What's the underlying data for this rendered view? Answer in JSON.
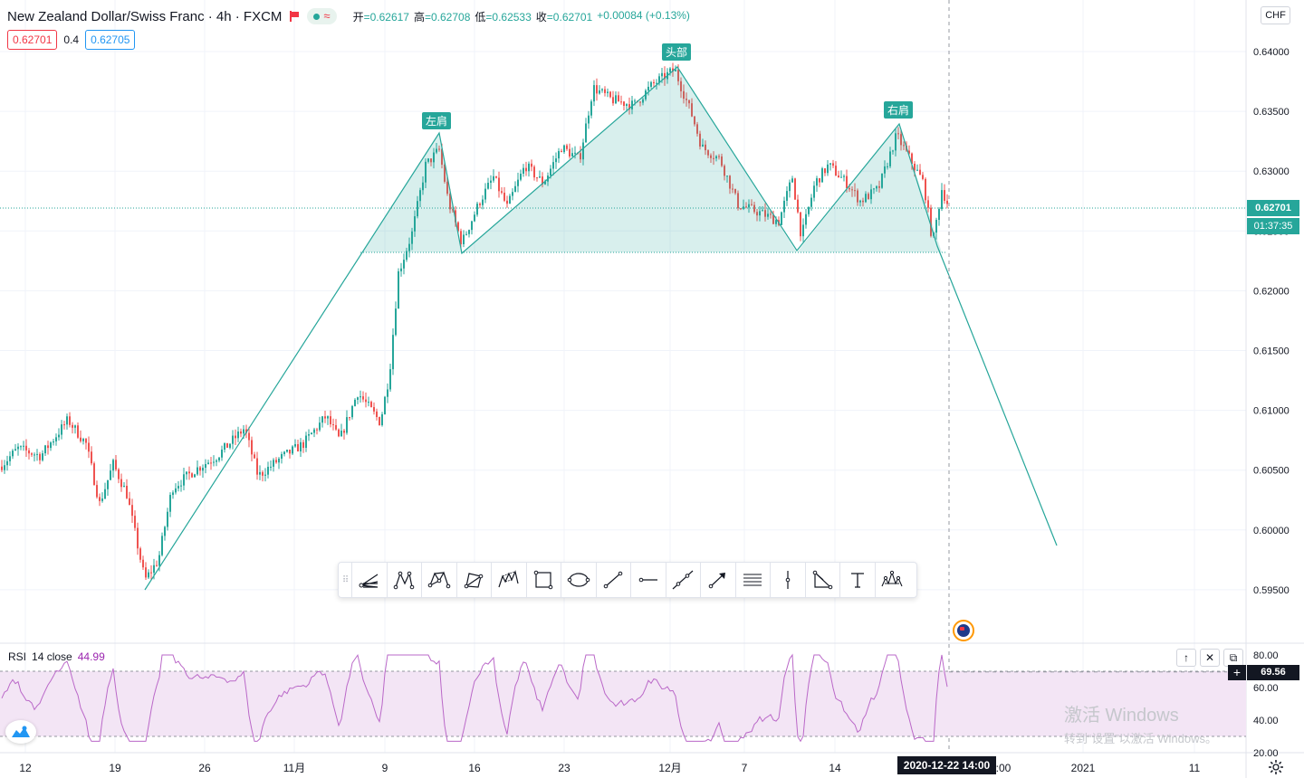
{
  "header": {
    "symbol_title": "New Zealand Dollar/Swiss Franc · 4h · FXCM",
    "status_approx": "≈",
    "ohlc": {
      "open_label": "开",
      "open": "=0.62617",
      "high_label": "高",
      "high": "=0.62708",
      "low_label": "低",
      "low": "=0.62533",
      "close_label": "收",
      "close": "=0.62701",
      "change": "+0.00084 (+0.13%)"
    }
  },
  "quote": {
    "bid": "0.62701",
    "spread": "0.4",
    "ask": "0.62705"
  },
  "price_axis": {
    "currency": "CHF",
    "ticks": [
      "0.64000",
      "0.63500",
      "0.63000",
      "0.62500",
      "0.62000",
      "0.61500",
      "0.61000",
      "0.60500",
      "0.60000",
      "0.59500"
    ],
    "current_price": "0.62701",
    "countdown": "01:37:35"
  },
  "time_axis": {
    "ticks": [
      "12",
      "19",
      "26",
      "11月",
      "9",
      "16",
      "23",
      "12月",
      "7",
      "14",
      "2021",
      "11"
    ],
    "partial_tick": ":00",
    "crosshair_time": "2020-12-22   14:00"
  },
  "pattern_labels": {
    "left_shoulder": "左肩",
    "head": "头部",
    "right_shoulder": "右肩"
  },
  "rsi": {
    "name": "RSI",
    "params": "14 close",
    "value": "44.99",
    "ticks": [
      "80.00",
      "60.00",
      "40.00",
      "20.00"
    ],
    "crosshair_value": "69.56"
  },
  "drawing_tools": [
    {
      "name": "pitchfork-icon"
    },
    {
      "name": "xabcd-pattern-icon"
    },
    {
      "name": "cypher-pattern-icon"
    },
    {
      "name": "abcd-pattern-icon"
    },
    {
      "name": "three-drives-pattern-icon"
    },
    {
      "name": "rectangle-icon"
    },
    {
      "name": "ellipse-icon"
    },
    {
      "name": "trend-line-icon"
    },
    {
      "name": "horizontal-ray-icon"
    },
    {
      "name": "extended-line-icon"
    },
    {
      "name": "arrow-icon"
    },
    {
      "name": "parallel-channel-icon"
    },
    {
      "name": "vertical-line-icon"
    },
    {
      "name": "triangle-icon"
    },
    {
      "name": "text-icon"
    },
    {
      "name": "head-and-shoulders-icon"
    }
  ],
  "pane_buttons": {
    "up": "↑",
    "close": "✕",
    "restore": "⧉"
  },
  "watermark": {
    "title": "激活 Windows",
    "subtitle": "转到“设置”以激活 Windows。"
  },
  "colors": {
    "up": "#26a69a",
    "down": "#ef5350",
    "pattern": "#26a69a",
    "rsi": "#ba68c8",
    "rsi_band": "#f3e5f5"
  }
}
